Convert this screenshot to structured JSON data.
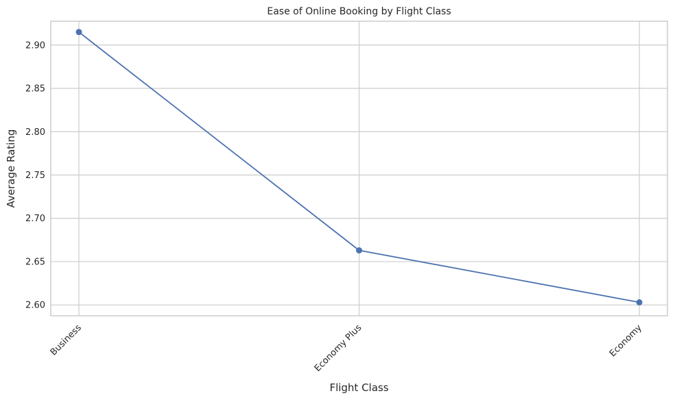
{
  "chart_data": {
    "type": "line",
    "title": "Ease of Online Booking by Flight Class",
    "xlabel": "Flight Class",
    "ylabel": "Average Rating",
    "categories": [
      "Business",
      "Economy Plus",
      "Economy"
    ],
    "series": [
      {
        "values": [
          2.915,
          2.663,
          2.603
        ],
        "color": "#4c72b0"
      }
    ],
    "yticks": [
      "2.60",
      "2.65",
      "2.70",
      "2.75",
      "2.80",
      "2.85",
      "2.90"
    ],
    "ylim": [
      2.5875,
      2.9275
    ],
    "grid": true,
    "legend": "none"
  }
}
